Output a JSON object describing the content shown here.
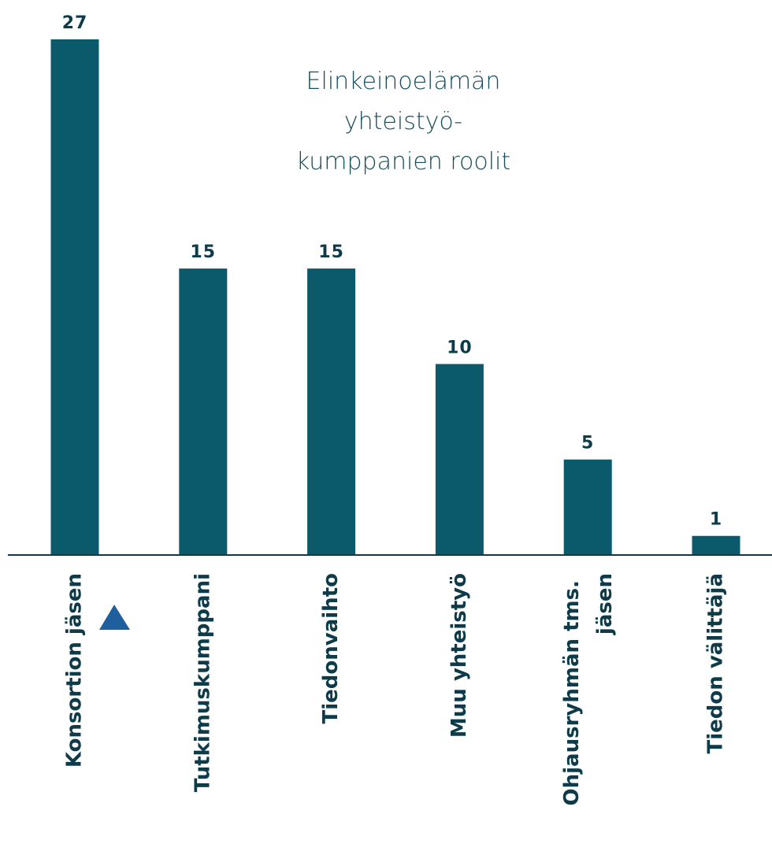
{
  "chart_data": {
    "type": "bar",
    "title": "Elinkeinoelämän yhteistyö-kumppanien roolit",
    "categories": [
      "Konsortion jäsen",
      "Tutkimuskumppani",
      "Tiedonvaihto",
      "Muu yhteistyö",
      "Ohjausryhmän tms. jäsen",
      "Tiedon välittäjä"
    ],
    "values": [
      27,
      15,
      15,
      10,
      5,
      1
    ],
    "color": "#0b5a6b",
    "ylim": [
      0,
      27
    ]
  }
}
